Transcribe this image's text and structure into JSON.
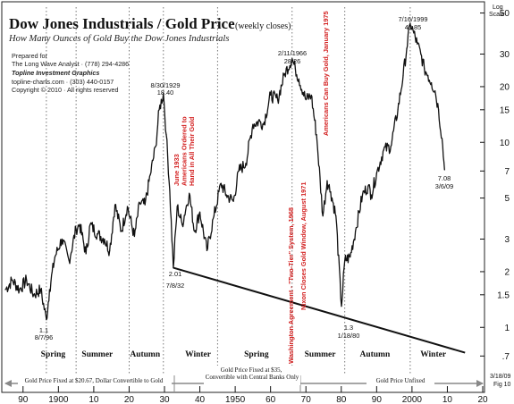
{
  "title_main": "Dow Jones Industrials / Gold Price",
  "title_suffix": "(weekly closes)",
  "subtitle": "How Many Ounces of Gold Buy the Dow Jones Industrials",
  "credits": {
    "prepared_for": "Prepared for",
    "client": "The Long Wave Analyst · (778) 294-4286",
    "firm": "Topline Investment Graphics",
    "contact": "topline-charts.com · (303) 440-0157",
    "copyright": "Copyright © 2010 · All rights reserved"
  },
  "log_scale_label": "Log Scale",
  "date_stamp_lines": [
    "3/18/09",
    "Fig 10"
  ],
  "chart_data": {
    "type": "line",
    "title": "Dow Jones Industrials / Gold Price",
    "y_scale": "log",
    "ylim": [
      0.55,
      55
    ],
    "xlim": [
      1885,
      2020
    ],
    "grid": false,
    "y_ticks": [
      0.7,
      1,
      1.5,
      2,
      3,
      5,
      7,
      10,
      15,
      20,
      30,
      50
    ],
    "x_tick_labels": [
      "90",
      "1900",
      "10",
      "20",
      "30",
      "40",
      "1950",
      "60",
      "70",
      "80",
      "90",
      "2000",
      "10",
      "20"
    ],
    "x_tick_years": [
      1890,
      1900,
      1910,
      1920,
      1930,
      1940,
      1950,
      1960,
      1970,
      1980,
      1990,
      2000,
      2010,
      2020
    ],
    "series": [
      {
        "points": [
          [
            1885,
            1.6
          ],
          [
            1887,
            1.8
          ],
          [
            1889,
            1.6
          ],
          [
            1891,
            1.8
          ],
          [
            1893,
            1.5
          ],
          [
            1895,
            1.6
          ],
          [
            1896.6,
            1.1
          ],
          [
            1897.5,
            1.6
          ],
          [
            1899,
            2.4
          ],
          [
            1901,
            3.0
          ],
          [
            1903,
            2.3
          ],
          [
            1905,
            3.4
          ],
          [
            1906,
            3.6
          ],
          [
            1907.8,
            2.5
          ],
          [
            1909,
            3.6
          ],
          [
            1911,
            3.2
          ],
          [
            1913,
            3.0
          ],
          [
            1914.5,
            2.6
          ],
          [
            1916,
            4.6
          ],
          [
            1917.8,
            3.3
          ],
          [
            1919.5,
            4.5
          ],
          [
            1921.5,
            3.1
          ],
          [
            1923,
            4.7
          ],
          [
            1924.5,
            4.6
          ],
          [
            1926,
            6.7
          ],
          [
            1927.5,
            9.5
          ],
          [
            1928.5,
            15
          ],
          [
            1929.7,
            18.4
          ],
          [
            1930.5,
            11
          ],
          [
            1931.5,
            5.5
          ],
          [
            1932.5,
            2.1
          ],
          [
            1933.6,
            4.5
          ],
          [
            1935,
            3.6
          ],
          [
            1937,
            5.3
          ],
          [
            1938.5,
            3.3
          ],
          [
            1940,
            4.2
          ],
          [
            1942,
            2.6
          ],
          [
            1944,
            4.0
          ],
          [
            1946,
            6.0
          ],
          [
            1947.5,
            5.2
          ],
          [
            1949.5,
            4.8
          ],
          [
            1951,
            7.0
          ],
          [
            1953,
            7.7
          ],
          [
            1955,
            12.5
          ],
          [
            1957,
            13
          ],
          [
            1958,
            12.5
          ],
          [
            1960,
            18
          ],
          [
            1962,
            17
          ],
          [
            1964,
            23.5
          ],
          [
            1966.1,
            28.3
          ],
          [
            1967,
            25
          ],
          [
            1968,
            22
          ],
          [
            1970,
            17
          ],
          [
            1971.5,
            18
          ],
          [
            1973,
            11
          ],
          [
            1974.8,
            4.0
          ],
          [
            1976,
            6.2
          ],
          [
            1977,
            5.4
          ],
          [
            1978.5,
            4.0
          ],
          [
            1980.05,
            1.3
          ],
          [
            1981,
            2.3
          ],
          [
            1982.5,
            2.4
          ],
          [
            1984,
            3.3
          ],
          [
            1986,
            5.2
          ],
          [
            1987.6,
            5.8
          ],
          [
            1988.5,
            5.2
          ],
          [
            1990,
            6.8
          ],
          [
            1992,
            9.1
          ],
          [
            1994,
            9.5
          ],
          [
            1996,
            15
          ],
          [
            1997.5,
            23
          ],
          [
            1998.5,
            32
          ],
          [
            1999.5,
            43.9
          ],
          [
            2000.5,
            39
          ],
          [
            2001.5,
            34
          ],
          [
            2002.5,
            30
          ],
          [
            2003.5,
            25
          ],
          [
            2004.5,
            23
          ],
          [
            2005.5,
            21
          ],
          [
            2006.5,
            19
          ],
          [
            2007.5,
            15
          ],
          [
            2008.5,
            10.5
          ],
          [
            2009.2,
            7.1
          ]
        ]
      }
    ],
    "trendline": {
      "from": [
        1932.5,
        2.1
      ],
      "to": [
        2015,
        0.73
      ]
    },
    "annotations": [
      {
        "date": "8/7/96",
        "value": "1.1"
      },
      {
        "date": "8/30/1929",
        "value": "18.40"
      },
      {
        "date": "7/8/32",
        "value": "2.01"
      },
      {
        "date": "2/11/1966",
        "value": "28.26"
      },
      {
        "date": "1/18/80",
        "value": "1.3"
      },
      {
        "date": "7/16/1999",
        "value": "43.85"
      },
      {
        "date": "3/6/09",
        "value": "7.08"
      }
    ],
    "red_notes": [
      "June 1933 Americans Ordered to Hand in All Their Gold",
      "Americans Can Buy Gold, January 1975",
      "Washington Agreement - \"Two-Tier\" System, 1968",
      "Nixon Closes Gold Window, August 1971"
    ],
    "season_labels": [
      "Spring",
      "Summer",
      "Autumn",
      "Winter",
      "Spring",
      "Summer",
      "Autumn",
      "Winter"
    ],
    "bands": [
      "Gold Price Fixed at $20.67, Dollar Convertible to Gold",
      "Gold Price Fixed at $35, Convertible with Central Banks Only",
      "Gold Price Unfixed"
    ]
  }
}
